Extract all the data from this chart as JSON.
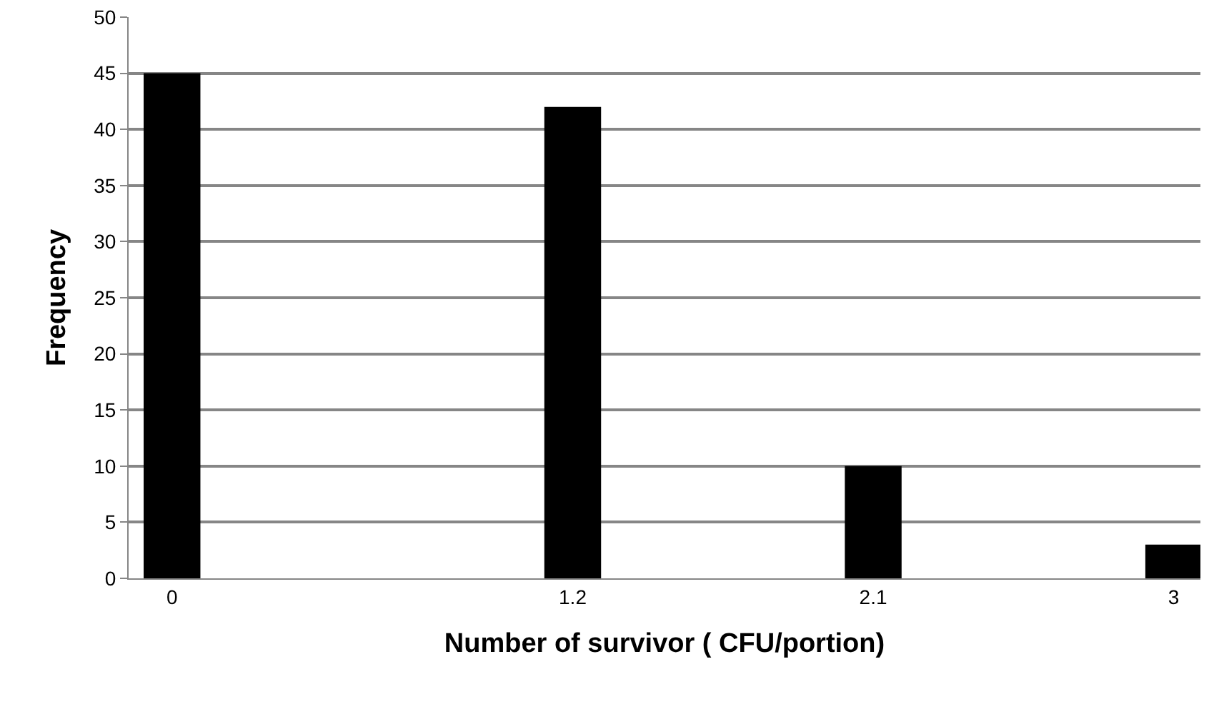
{
  "chart_data": {
    "type": "bar",
    "xlabel": "Number of survivor ( CFU/portion)",
    "ylabel": "Frequency",
    "x": [
      0,
      1.2,
      2.1,
      3
    ],
    "values": [
      45,
      42,
      10,
      3
    ],
    "color": "#000000",
    "xlim": [
      -0.13,
      3.08
    ],
    "xticks": [
      0,
      1.2,
      2.1,
      3
    ],
    "ylim": [
      0,
      50
    ],
    "yticks": [
      0,
      5,
      10,
      15,
      20,
      25,
      30,
      35,
      40,
      45,
      50
    ],
    "grid": "y"
  }
}
